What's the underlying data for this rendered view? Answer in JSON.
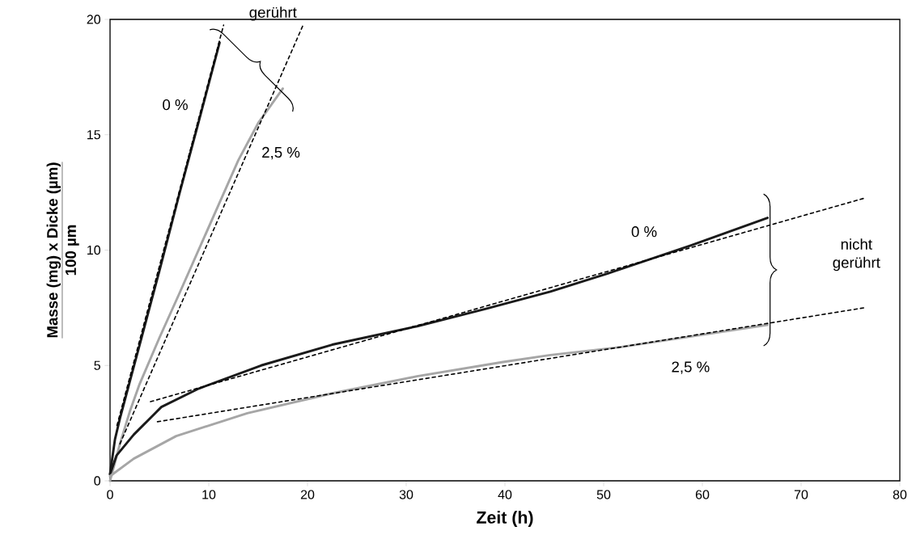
{
  "chart_data": {
    "type": "line",
    "xlabel": "Zeit (h)",
    "ylabel": "Masse (mg) x Dicke (µm)",
    "annotations": [
      "100 µm",
      "gerührt",
      "nicht gerührt"
    ],
    "xlim": [
      0,
      80
    ],
    "ylim": [
      0,
      20
    ],
    "xticks": [
      0,
      10,
      20,
      30,
      40,
      50,
      60,
      70,
      80
    ],
    "yticks": [
      0,
      5,
      10,
      15,
      20
    ],
    "series": [
      {
        "name": "0 %",
        "color": "#1a1a1a",
        "line_style": "solid",
        "x": [
          0,
          0.5,
          1,
          2,
          3,
          5,
          7,
          9,
          11.1
        ],
        "values": [
          0.3,
          1.8,
          2.7,
          4.3,
          5.9,
          9.1,
          12.4,
          15.6,
          19.0
        ]
      },
      {
        "name": "2,5 %",
        "color": "#a6a6a6",
        "line_style": "solid",
        "x": [
          0,
          1,
          2,
          3,
          5,
          7,
          10,
          13,
          15,
          17.5
        ],
        "values": [
          0,
          1.6,
          3.0,
          4.2,
          6.2,
          8.1,
          11.0,
          13.9,
          15.5,
          17.0
        ]
      },
      {
        "name": "0 %",
        "color": "#1a1a1a",
        "line_style": "solid",
        "x": [
          0,
          0.66,
          2.4,
          5.2,
          9.0,
          15.3,
          22.5,
          31.1,
          38.0,
          44.6,
          50.5,
          58.8,
          66.6
        ],
        "values": [
          0.28,
          1.1,
          2.0,
          3.2,
          4.0,
          5.0,
          5.9,
          6.7,
          7.45,
          8.2,
          9.0,
          10.2,
          11.4
        ]
      },
      {
        "name": "2,5 %",
        "color": "#a6a6a6",
        "line_style": "solid",
        "x": [
          0,
          2.4,
          6.7,
          13.9,
          22.5,
          31.1,
          39.8,
          44.6,
          51.8,
          66.6
        ],
        "values": [
          0.2,
          0.96,
          1.94,
          2.93,
          3.79,
          4.53,
          5.15,
          5.45,
          5.8,
          6.76
        ]
      },
      {
        "color": "#000000",
        "line_style": "dashed",
        "x": [
          0.7,
          11.5
        ],
        "values": [
          2.4,
          19.75
        ]
      },
      {
        "color": "#000000",
        "line_style": "dashed",
        "x": [
          1.0,
          19.6
        ],
        "values": [
          1.6,
          19.8
        ]
      },
      {
        "color": "#000000",
        "line_style": "dashed",
        "x": [
          4.1,
          76.4
        ],
        "values": [
          3.43,
          12.25
        ]
      },
      {
        "color": "#000000",
        "line_style": "dashed",
        "x": [
          4.8,
          76.4
        ],
        "values": [
          2.56,
          7.5
        ]
      }
    ]
  }
}
